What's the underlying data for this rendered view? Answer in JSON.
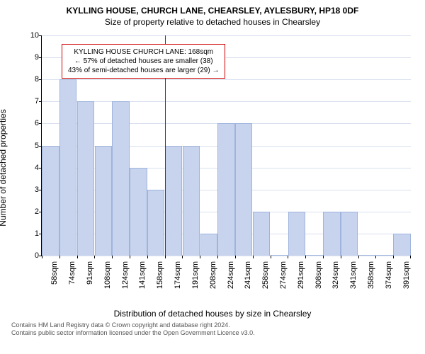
{
  "title_main": "KYLLING HOUSE, CHURCH LANE, CHEARSLEY, AYLESBURY, HP18 0DF",
  "title_sub": "Size of property relative to detached houses in Chearsley",
  "y_axis_label": "Number of detached properties",
  "x_axis_title": "Distribution of detached houses by size in Chearsley",
  "footer_line1": "Contains HM Land Registry data © Crown copyright and database right 2024.",
  "footer_line2": "Contains public sector information licensed under the Open Government Licence v3.0.",
  "chart": {
    "type": "histogram",
    "ylim": [
      0,
      10
    ],
    "ytick_step": 1,
    "y_ticks": [
      0,
      1,
      2,
      3,
      4,
      5,
      6,
      7,
      8,
      9,
      10
    ],
    "x_labels": [
      "58sqm",
      "74sqm",
      "91sqm",
      "108sqm",
      "124sqm",
      "141sqm",
      "158sqm",
      "174sqm",
      "191sqm",
      "208sqm",
      "224sqm",
      "241sqm",
      "258sqm",
      "274sqm",
      "291sqm",
      "308sqm",
      "324sqm",
      "341sqm",
      "358sqm",
      "374sqm",
      "391sqm"
    ],
    "values": [
      5,
      8,
      7,
      5,
      7,
      4,
      3,
      5,
      5,
      1,
      6,
      6,
      2,
      0,
      2,
      0,
      2,
      2,
      0,
      0,
      1
    ],
    "bar_color": "#c8d4ee",
    "bar_border": "#9fb3dd",
    "grid_color": "#d8dfee",
    "background_color": "#ffffff",
    "marker_index": 7,
    "marker_fraction_within_bar": 0.0,
    "marker_color": "#cc0000",
    "info_box": {
      "line1": "KYLLING HOUSE CHURCH LANE: 168sqm",
      "line2": "← 57% of detached houses are smaller (38)",
      "line3": "43% of semi-detached houses are larger (29) →",
      "border_color": "#cc0000",
      "text_color": "#000000"
    },
    "title_fontsize": 12,
    "label_fontsize": 12,
    "tick_fontsize": 11
  }
}
